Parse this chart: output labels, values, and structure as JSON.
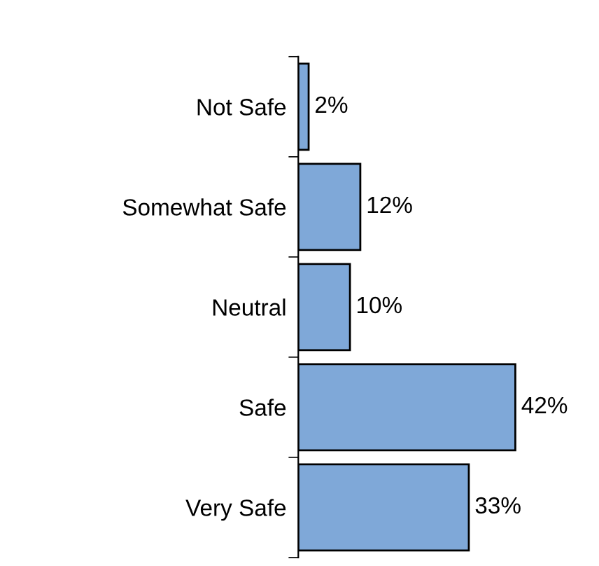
{
  "chart_data": {
    "type": "bar",
    "orientation": "horizontal",
    "categories": [
      "Not Safe",
      "Somewhat Safe",
      "Neutral",
      "Safe",
      "Very Safe"
    ],
    "values": [
      2,
      12,
      10,
      42,
      33
    ],
    "value_labels": [
      "2%",
      "12%",
      "10%",
      "42%",
      "33%"
    ],
    "color": "#7fa8d8",
    "grid": false,
    "legend": false,
    "tick_labels": "y"
  }
}
